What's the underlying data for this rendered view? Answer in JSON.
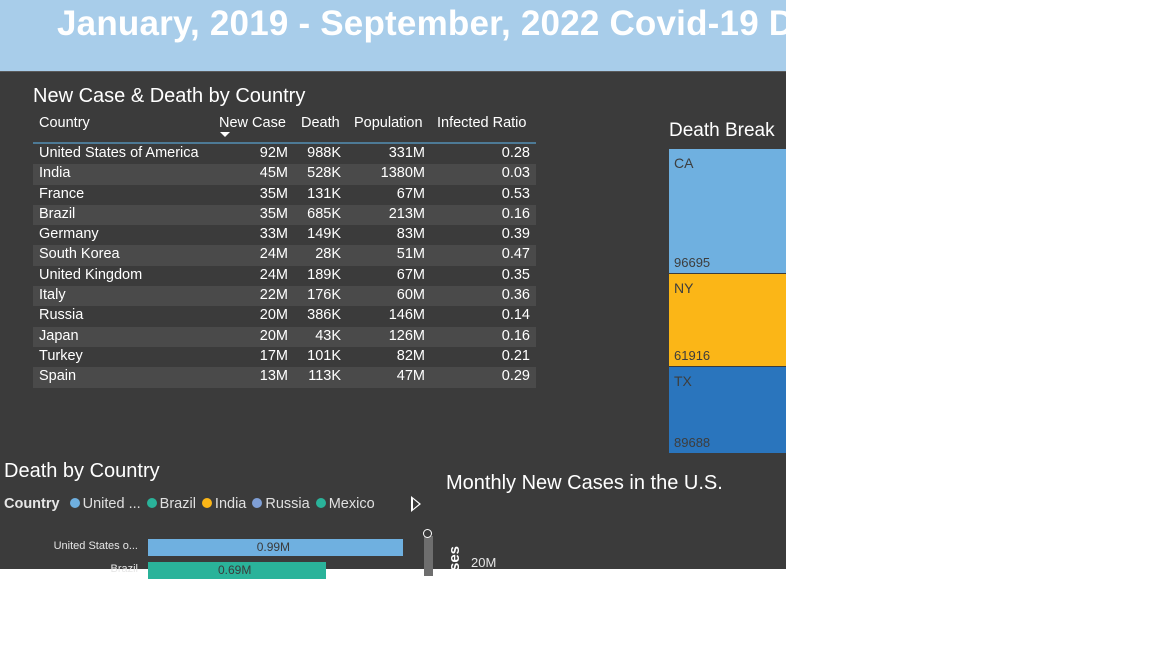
{
  "header": {
    "title": "January, 2019 - September, 2022 Covid-19 D"
  },
  "table": {
    "title": "New Case & Death by Country",
    "columns": [
      "Country",
      "New Case",
      "Death",
      "Population",
      "Infected Ratio"
    ],
    "sorted_column": "New Case",
    "rows": [
      [
        "United States of America",
        "92M",
        "988K",
        "331M",
        "0.28"
      ],
      [
        "India",
        "45M",
        "528K",
        "1380M",
        "0.03"
      ],
      [
        "France",
        "35M",
        "131K",
        "67M",
        "0.53"
      ],
      [
        "Brazil",
        "35M",
        "685K",
        "213M",
        "0.16"
      ],
      [
        "Germany",
        "33M",
        "149K",
        "83M",
        "0.39"
      ],
      [
        "South Korea",
        "24M",
        "28K",
        "51M",
        "0.47"
      ],
      [
        "United Kingdom",
        "24M",
        "189K",
        "67M",
        "0.35"
      ],
      [
        "Italy",
        "22M",
        "176K",
        "60M",
        "0.36"
      ],
      [
        "Russia",
        "20M",
        "386K",
        "146M",
        "0.14"
      ],
      [
        "Japan",
        "20M",
        "43K",
        "126M",
        "0.16"
      ],
      [
        "Turkey",
        "17M",
        "101K",
        "82M",
        "0.21"
      ],
      [
        "Spain",
        "13M",
        "113K",
        "47M",
        "0.29"
      ]
    ]
  },
  "treemap": {
    "title": "Death Break",
    "tiles": [
      {
        "label": "CA",
        "value": "96695",
        "color": "#6fb0e0"
      },
      {
        "label": "NY",
        "value": "61916",
        "color": "#fbb617"
      },
      {
        "label": "TX",
        "value": "89688",
        "color": "#2a75bd"
      }
    ]
  },
  "bar_chart": {
    "title": "Death by Country",
    "legend_title": "Country",
    "legend": [
      {
        "label": "United ...",
        "color": "#6fb0e0"
      },
      {
        "label": "Brazil",
        "color": "#2ab39a"
      },
      {
        "label": "India",
        "color": "#fbb617"
      },
      {
        "label": "Russia",
        "color": "#7f9fd6"
      },
      {
        "label": "Mexico",
        "color": "#2ab39a"
      }
    ],
    "icons": {
      "next": "chevron-right-icon"
    },
    "chart_data": {
      "type": "bar",
      "orientation": "horizontal",
      "categories": [
        "United States o...",
        "Brazil"
      ],
      "values": [
        0.99,
        0.69
      ],
      "data_labels": [
        "0.99M",
        "0.69M"
      ],
      "colors": [
        "#6fb0e0",
        "#2ab39a"
      ],
      "xlim": [
        0,
        1
      ]
    }
  },
  "line_chart": {
    "title": "Monthly New Cases in the U.S.",
    "ylabel_fragment": "ses",
    "ytick": "20M"
  }
}
